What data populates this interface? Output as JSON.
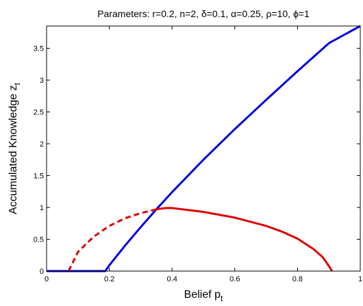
{
  "chart_data": {
    "type": "line",
    "title": "Parameters: r=0.2, n=2, δ=0.1, α=0.25, ρ=10, ϕ=1",
    "xlabel": "Belief p",
    "xlabel_sub": "t",
    "ylabel": "Accumulated Knowledge z",
    "ylabel_sub": "t",
    "xlim": [
      0,
      1
    ],
    "ylim": [
      0,
      3.85
    ],
    "grid": false,
    "x_ticks": [
      0,
      0.2,
      0.4,
      0.6,
      0.8,
      1
    ],
    "x_tick_labels": [
      "0",
      "0.2",
      "0.4",
      "0.6",
      "0.8",
      "1"
    ],
    "y_ticks": [
      0,
      0.5,
      1,
      1.5,
      2,
      2.5,
      3,
      3.5
    ],
    "y_tick_labels": [
      "0",
      "0.5",
      "1",
      "1.5",
      "2",
      "2.5",
      "3",
      "3.5"
    ],
    "series": [
      {
        "color": "#0000dd",
        "style": "solid",
        "x": [
          0,
          0.187,
          0.2,
          0.25,
          0.3,
          0.35,
          0.4,
          0.5,
          0.6,
          0.7,
          0.8,
          0.9,
          1.0
        ],
        "y": [
          0,
          0,
          0.09,
          0.4,
          0.69,
          0.97,
          1.24,
          1.75,
          2.23,
          2.69,
          3.14,
          3.58,
          3.85
        ]
      },
      {
        "color": "#dd0000",
        "style": "dashed",
        "x": [
          0.07,
          0.1,
          0.15,
          0.2,
          0.25,
          0.3,
          0.35
        ],
        "y": [
          0,
          0.3,
          0.54,
          0.71,
          0.83,
          0.91,
          0.97
        ]
      },
      {
        "color": "#dd0000",
        "style": "solid",
        "x": [
          0.35,
          0.38,
          0.4,
          0.5,
          0.6,
          0.7,
          0.75,
          0.8,
          0.85,
          0.88,
          0.9,
          0.91
        ],
        "y": [
          0.97,
          0.99,
          0.99,
          0.93,
          0.84,
          0.71,
          0.62,
          0.51,
          0.35,
          0.22,
          0.08,
          0
        ]
      }
    ]
  }
}
